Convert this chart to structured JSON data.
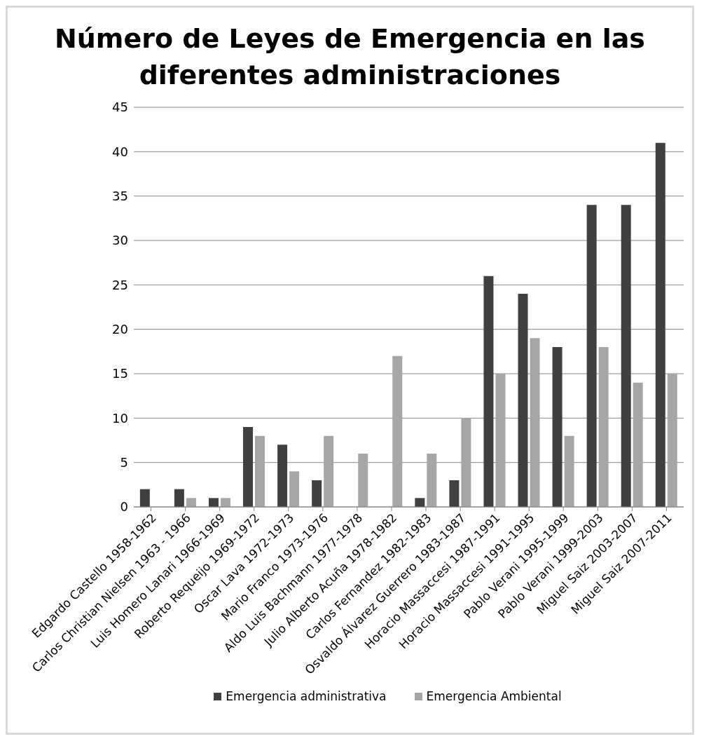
{
  "chart_data": {
    "type": "bar",
    "title": "Número de Leyes de Emergencia en las diferentes administraciones",
    "categories": [
      "Edgardo Castello 1958-1962",
      "Carlos Christian Nielsen 1963 - 1966",
      "Luis Homero Lanari 1966-1969",
      "Roberto Requeijo 1969-1972",
      "Oscar Lava 1972-1973",
      "Mario Franco 1973-1976",
      "Aldo Luis Bachmann 1977-1978",
      "Julio Alberto Acuña 1978-1982",
      "Carlos Fernandez 1982-1983",
      "Osvaldo Álvarez Guerrero 1983-1987",
      "Horacio Massaccesi 1987-1991",
      "Horacio Massaccesi 1991-1995",
      "Pablo Verani 1995-1999",
      "Pablo Verani 1999-2003",
      "Miguel Saiz 2003-2007",
      "Miguel Saiz 2007-2011"
    ],
    "series": [
      {
        "name": "Emergencia administrativa",
        "color": "#404040",
        "values": [
          2,
          2,
          1,
          9,
          7,
          3,
          0,
          0,
          1,
          3,
          26,
          24,
          18,
          34,
          34,
          41
        ]
      },
      {
        "name": "Emergencia Ambiental",
        "color": "#a6a6a6",
        "values": [
          0,
          1,
          1,
          8,
          4,
          8,
          6,
          17,
          6,
          10,
          15,
          19,
          8,
          18,
          14,
          15
        ]
      }
    ],
    "ylim": [
      0,
      45
    ],
    "yticks": [
      0,
      5,
      10,
      15,
      20,
      25,
      30,
      35,
      40,
      45
    ],
    "grid": "y",
    "legend": "bottom"
  }
}
